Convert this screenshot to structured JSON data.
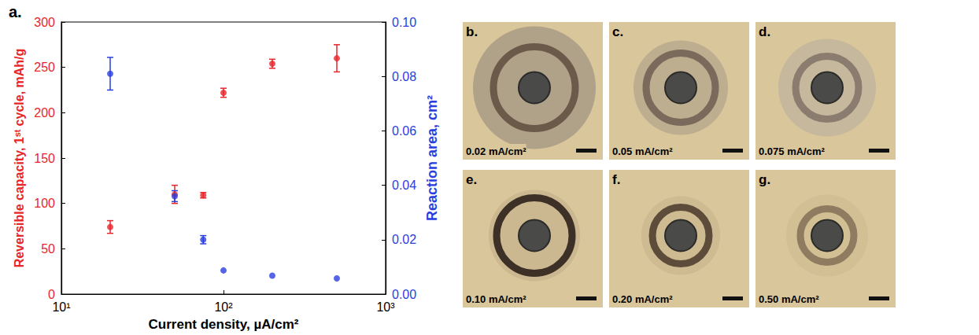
{
  "chart_data": {
    "type": "scatter",
    "title": "a.",
    "x_label": "Current density, µA/cm²",
    "y_label": "Reversible capacity, 1ˢᵗ cycle, mAh/g",
    "y2_label": "Reaction area, cm²",
    "log": "x",
    "grid": false,
    "xlim": [
      10,
      1000
    ],
    "xticks": [
      {
        "value": 10,
        "label": "10¹"
      },
      {
        "value": 100,
        "label": "10²"
      },
      {
        "value": 1000,
        "label": "10³"
      }
    ],
    "ylim": [
      0,
      300
    ],
    "yticks": [
      0,
      50,
      100,
      150,
      200,
      250,
      300
    ],
    "y2lim": [
      0,
      0.1
    ],
    "y2ticks": [
      {
        "value": 0,
        "label": "0.00"
      },
      0.02,
      0.04,
      0.06,
      0.08,
      {
        "value": 0.1,
        "label": "0.10"
      }
    ],
    "x": [
      20,
      50,
      75,
      100,
      200,
      500
    ],
    "series": [
      {
        "color": "#e8262a",
        "marker": "circle",
        "values": [
          74,
          110,
          109,
          222,
          254,
          260
        ],
        "errors": [
          7,
          10,
          3,
          5,
          5,
          15
        ]
      },
      {
        "color": "#2a3ee0",
        "marker": "circle",
        "axis": "y2",
        "values": [
          0.081,
          0.036,
          0.02,
          0.0087,
          0.0068,
          0.0058
        ],
        "errors": [
          0.006,
          0.002,
          0.0015,
          0,
          0,
          0
        ]
      }
    ]
  },
  "panels": [
    {
      "letter": "b.",
      "label": "0.02 mA/cm²"
    },
    {
      "letter": "c.",
      "label": "0.05 mA/cm²"
    },
    {
      "letter": "d.",
      "label": "0.075 mA/cm²"
    },
    {
      "letter": "e.",
      "label": "0.10 mA/cm²"
    },
    {
      "letter": "f.",
      "label": "0.20 mA/cm²"
    },
    {
      "letter": "g.",
      "label": "0.50 mA/cm²"
    }
  ]
}
